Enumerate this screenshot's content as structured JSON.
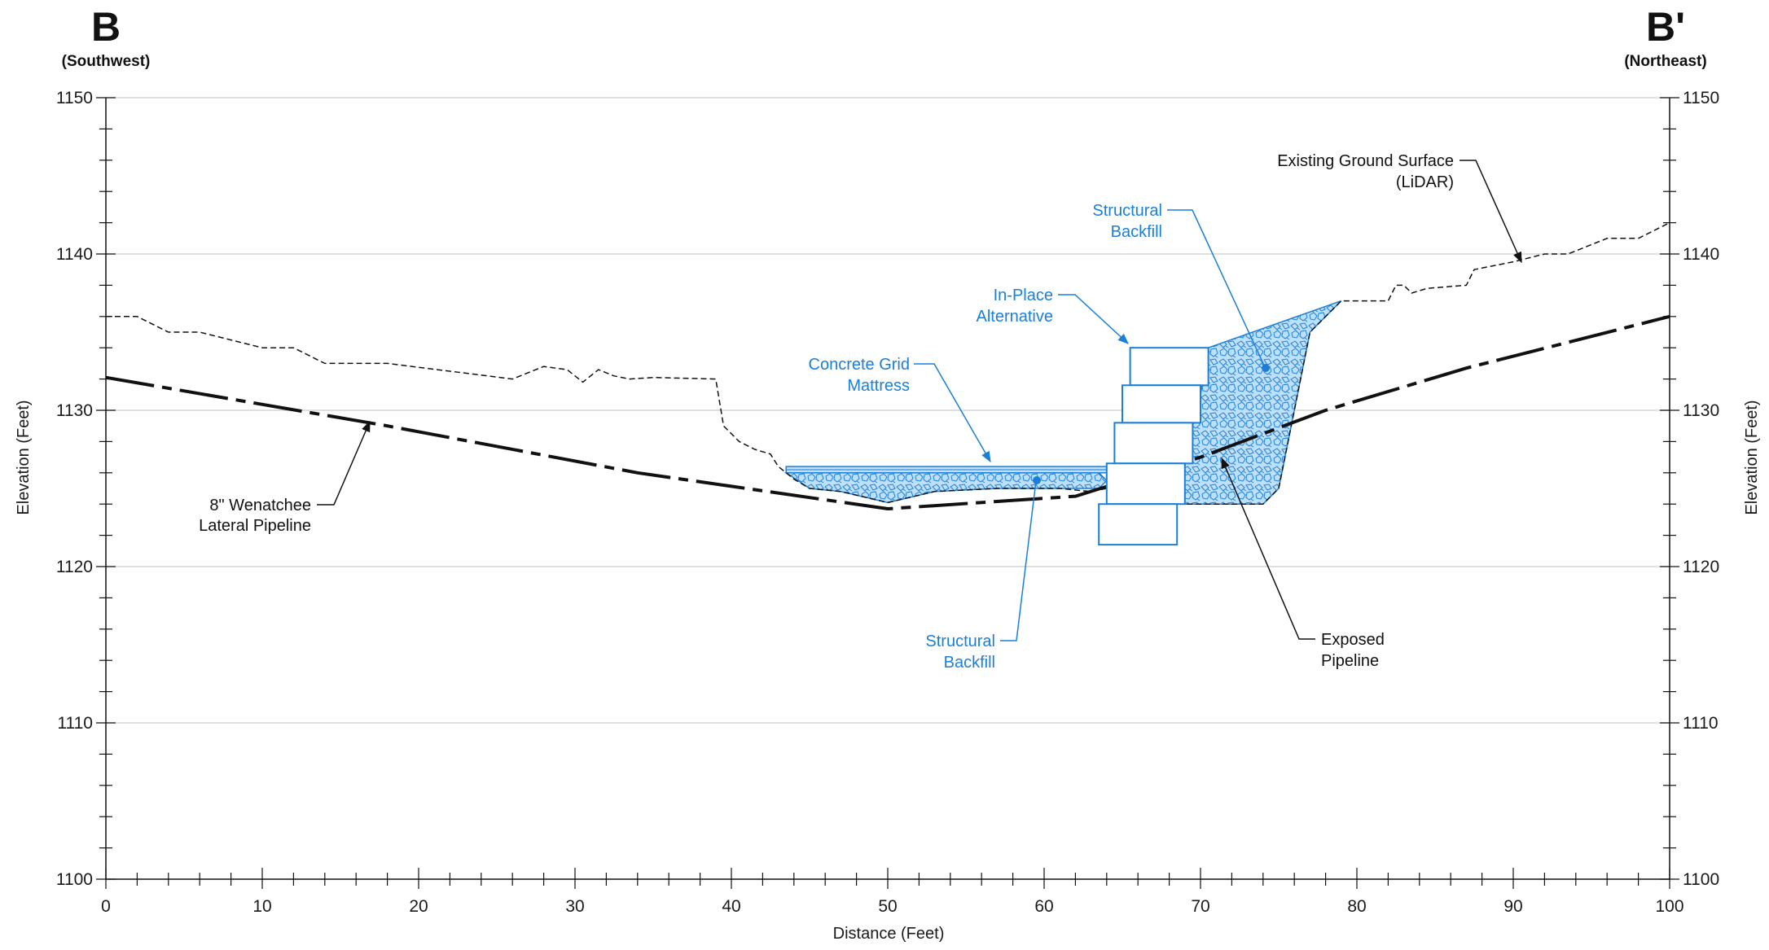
{
  "header": {
    "left_letter": "B",
    "left_direction": "(Southwest)",
    "right_letter": "B'",
    "right_direction": "(Northeast)"
  },
  "axes": {
    "x_label": "Distance (Feet)",
    "y_label_left": "Elevation (Feet)",
    "y_label_right": "Elevation (Feet)",
    "x_range": [
      0,
      100
    ],
    "y_range": [
      1100,
      1150
    ],
    "x_ticks": [
      "0",
      "10",
      "20",
      "30",
      "40",
      "50",
      "60",
      "70",
      "80",
      "90",
      "100"
    ],
    "y_ticks": [
      "1100",
      "1110",
      "1120",
      "1130",
      "1140",
      "1150"
    ],
    "minor_x_step": 2,
    "minor_y_step": 2,
    "gridlines": "horizontal every 10 ft"
  },
  "colors": {
    "blue": "#1a7fd9",
    "fill_blue": "#bfe0fb",
    "black": "#111111",
    "grid": "#cccccc"
  },
  "profiles": {
    "ground_surface": [
      [
        0,
        1136
      ],
      [
        2,
        1136
      ],
      [
        4,
        1135
      ],
      [
        6,
        1135
      ],
      [
        8,
        1134.5
      ],
      [
        10,
        1134
      ],
      [
        12,
        1134
      ],
      [
        14,
        1133
      ],
      [
        18,
        1133
      ],
      [
        22,
        1132.5
      ],
      [
        26,
        1132
      ],
      [
        28,
        1132.8
      ],
      [
        29.5,
        1132.6
      ],
      [
        30.5,
        1131.8
      ],
      [
        31.5,
        1132.6
      ],
      [
        32.5,
        1132.2
      ],
      [
        33.5,
        1132
      ],
      [
        35,
        1132.1
      ],
      [
        39,
        1132
      ],
      [
        39.5,
        1129
      ],
      [
        40.5,
        1128
      ],
      [
        41.5,
        1127.5
      ],
      [
        42.5,
        1127.2
      ],
      [
        43,
        1126.4
      ],
      [
        44,
        1125.6
      ],
      [
        45,
        1125
      ],
      [
        47,
        1124.8
      ],
      [
        50,
        1124.1
      ],
      [
        53,
        1124.8
      ],
      [
        57,
        1125
      ],
      [
        61,
        1125
      ],
      [
        63,
        1124.8
      ],
      [
        64,
        1125
      ],
      [
        65,
        1125
      ],
      [
        67,
        1124
      ],
      [
        70,
        1124
      ],
      [
        72,
        1124
      ],
      [
        74,
        1124
      ],
      [
        75,
        1125
      ],
      [
        76,
        1130
      ],
      [
        77,
        1135
      ],
      [
        79,
        1137
      ],
      [
        82,
        1137
      ],
      [
        82.5,
        1138
      ],
      [
        83,
        1138
      ],
      [
        83.5,
        1137.5
      ],
      [
        84.5,
        1137.8
      ],
      [
        87,
        1138
      ],
      [
        87.5,
        1139
      ],
      [
        90,
        1139.5
      ],
      [
        92,
        1140
      ],
      [
        93.5,
        1140
      ],
      [
        95,
        1140.6
      ],
      [
        96,
        1141
      ],
      [
        98,
        1141
      ],
      [
        100,
        1142
      ]
    ],
    "pipeline": [
      [
        0,
        1132.1
      ],
      [
        18,
        1129
      ],
      [
        34,
        1126
      ],
      [
        50,
        1123.7
      ],
      [
        62,
        1124.5
      ],
      [
        70,
        1127
      ],
      [
        78,
        1130
      ],
      [
        87,
        1132.7
      ],
      [
        100,
        1136
      ]
    ]
  },
  "structures": {
    "mattress": {
      "x0": 43.5,
      "x1": 64,
      "y_top": 1126.4,
      "y_bottom": 1126
    },
    "mattress_backfill": [
      [
        43.5,
        1126
      ],
      [
        63.5,
        1126
      ],
      [
        64,
        1125.5
      ],
      [
        63.5,
        1125
      ],
      [
        61,
        1125
      ],
      [
        57,
        1125
      ],
      [
        53,
        1124.8
      ],
      [
        50,
        1124.1
      ],
      [
        47,
        1124.8
      ],
      [
        45,
        1125
      ]
    ],
    "backfill_wedge": [
      [
        70.5,
        1134
      ],
      [
        79,
        1137
      ],
      [
        77,
        1135
      ],
      [
        76,
        1130
      ],
      [
        75,
        1125
      ],
      [
        74,
        1124
      ],
      [
        69,
        1124
      ],
      [
        69,
        1126.4
      ],
      [
        69.5,
        1129
      ],
      [
        70,
        1131
      ]
    ],
    "blocks": [
      {
        "x0": 65.5,
        "x1": 70.5,
        "y0": 1131.6,
        "y1": 1134
      },
      {
        "x0": 65,
        "x1": 70,
        "y0": 1129.2,
        "y1": 1131.6
      },
      {
        "x0": 64.5,
        "x1": 69.5,
        "y0": 1126.6,
        "y1": 1129.2
      },
      {
        "x0": 64,
        "x1": 69,
        "y0": 1124,
        "y1": 1126.6
      },
      {
        "x0": 63.5,
        "x1": 68.5,
        "y0": 1121.4,
        "y1": 1124
      }
    ]
  },
  "callouts": {
    "ground_surface": {
      "line1": "Existing Ground Surface",
      "line2": "(LiDAR)"
    },
    "pipeline": {
      "line1": "8\" Wenatchee",
      "line2": "Lateral Pipeline"
    },
    "structural_backfill_upper": {
      "line1": "Structural",
      "line2": "Backfill"
    },
    "in_place_alternative": {
      "line1": "In-Place",
      "line2": "Alternative"
    },
    "concrete_grid_mattress": {
      "line1": "Concrete Grid",
      "line2": "Mattress"
    },
    "structural_backfill_lower": {
      "line1": "Structural",
      "line2": "Backfill"
    },
    "exposed_pipeline": {
      "line1": "Exposed",
      "line2": "Pipeline"
    }
  }
}
